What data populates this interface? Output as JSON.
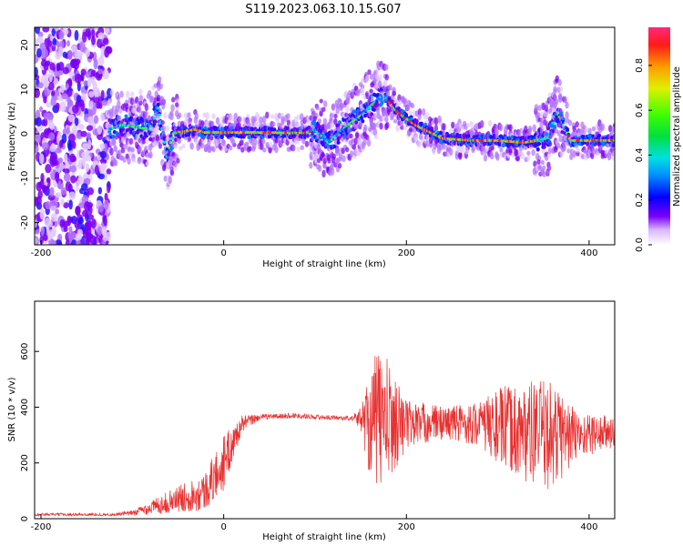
{
  "title": "S119.2023.063.10.15.G07",
  "chart_data": [
    {
      "type": "heatmap",
      "xlabel": "Height of straight line (km)",
      "ylabel": "Frequency (Hz)",
      "xlim": [
        -207,
        428
      ],
      "ylim": [
        -25,
        24
      ],
      "xticks": [
        "-200",
        "0",
        "200",
        "400"
      ],
      "yticks": [
        "-20",
        "-10",
        "0",
        "10",
        "20"
      ],
      "colorbar": {
        "label": "Normalized spectral amplitude",
        "range": [
          0,
          0.97
        ],
        "ticks": [
          "0.0",
          "0.2",
          "0.4",
          "0.6",
          "0.8"
        ]
      },
      "ridge_track": {
        "x": [
          -125,
          -110,
          -95,
          -80,
          -72,
          -62,
          -55,
          -45,
          -30,
          -20,
          0,
          40,
          90,
          100,
          115,
          130,
          150,
          165,
          175,
          190,
          210,
          240,
          270,
          300,
          330,
          355,
          365,
          380,
          400,
          430
        ],
        "y": [
          1,
          2,
          1.5,
          1,
          6,
          -5,
          0,
          0.5,
          1,
          0.3,
          0.3,
          0.3,
          0.2,
          1,
          -2,
          1,
          4,
          7,
          9,
          5,
          2,
          -1,
          -1.5,
          -1.5,
          -2,
          -1,
          5,
          -1.5,
          -1.5,
          -1.5
        ]
      }
    },
    {
      "type": "line",
      "xlabel": "Height of straight line (km)",
      "ylabel": "SNR (10 * v/v)",
      "xlim": [
        -207,
        428
      ],
      "ylim": [
        0,
        780
      ],
      "xticks": [
        "-200",
        "0",
        "200",
        "400"
      ],
      "yticks": [
        "0",
        "200",
        "400",
        "600"
      ],
      "series_color": "#e83030",
      "envelope": {
        "x": [
          -207,
          -120,
          -100,
          -60,
          -20,
          0,
          20,
          40,
          80,
          100,
          140,
          150,
          160,
          170,
          180,
          200,
          240,
          280,
          300,
          330,
          360,
          390,
          428
        ],
        "center": [
          15,
          15,
          20,
          60,
          100,
          200,
          340,
          365,
          370,
          365,
          360,
          360,
          350,
          360,
          350,
          340,
          345,
          340,
          330,
          310,
          300,
          300,
          310
        ],
        "amplitude": [
          5,
          5,
          10,
          40,
          70,
          100,
          30,
          10,
          10,
          8,
          8,
          40,
          200,
          260,
          220,
          90,
          60,
          80,
          140,
          180,
          200,
          80,
          60
        ]
      }
    }
  ]
}
